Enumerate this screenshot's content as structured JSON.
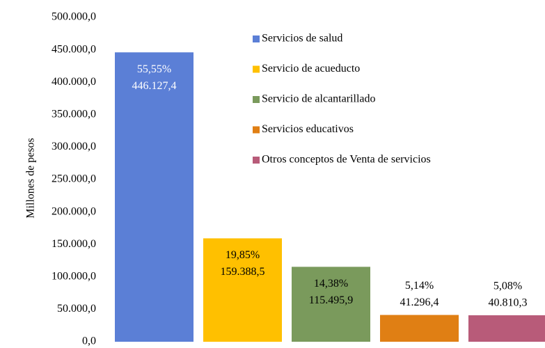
{
  "chart_data": {
    "type": "bar",
    "y_label": "Millones  de pesos",
    "ylim": [
      0,
      500000
    ],
    "yticks": [
      {
        "value": 0,
        "label": "0,0"
      },
      {
        "value": 50000,
        "label": "50.000,0"
      },
      {
        "value": 100000,
        "label": "100.000,0"
      },
      {
        "value": 150000,
        "label": "150.000,0"
      },
      {
        "value": 200000,
        "label": "200.000,0"
      },
      {
        "value": 250000,
        "label": "250.000,0"
      },
      {
        "value": 300000,
        "label": "300.000,0"
      },
      {
        "value": 350000,
        "label": "350.000,0"
      },
      {
        "value": 400000,
        "label": "400.000,0"
      },
      {
        "value": 450000,
        "label": "450.000,0"
      },
      {
        "value": 500000,
        "label": "500.000,0"
      }
    ],
    "grid": false,
    "legend": "upper right",
    "series": [
      {
        "name": "Servicios de salud",
        "color": "#5b7fd6",
        "values": [
          446127.4
        ],
        "value_labels": [
          "446.127,4"
        ],
        "share": 55.55,
        "share_label": "55,55%"
      },
      {
        "name": "Servicio de acueducto",
        "color": "#ffc000",
        "values": [
          159388.5
        ],
        "value_labels": [
          "159.388,5"
        ],
        "share": 19.85,
        "share_label": "19,85%"
      },
      {
        "name": "Servicio de alcantarillado",
        "color": "#7a9a5c",
        "values": [
          115495.9
        ],
        "value_labels": [
          "115.495,9"
        ],
        "share": 14.38,
        "share_label": "14,38%"
      },
      {
        "name": "Servicios educativos",
        "color": "#e07f14",
        "values": [
          41296.4
        ],
        "value_labels": [
          "41.296,4"
        ],
        "share": 5.14,
        "share_label": "5,14%"
      },
      {
        "name": "Otros conceptos de Venta de servicios",
        "color": "#b85b79",
        "values": [
          40810.3
        ],
        "value_labels": [
          "40.810,3"
        ],
        "share": 5.08,
        "share_label": "5,08%"
      }
    ]
  }
}
